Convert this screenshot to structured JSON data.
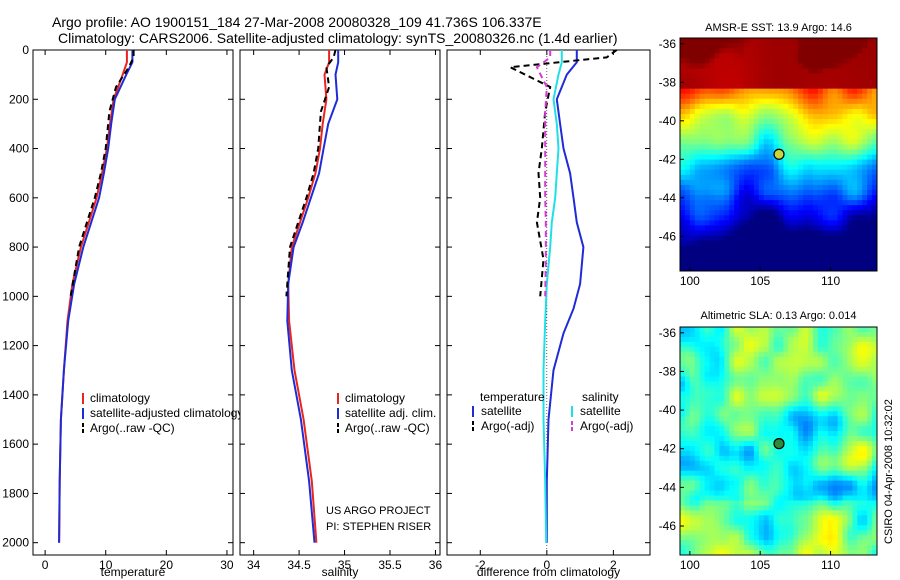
{
  "header": {
    "line1": "Argo profile: AO 1900151_184 27-Mar-2008 20080328_109 41.736S 106.337E",
    "line2": "Climatology: CARS2006. Satellite-adjusted climatology: synTS_20080326.nc (1.4d earlier)"
  },
  "footer": {
    "project": "US ARGO PROJECT",
    "pi": "PI: STEPHEN RISER",
    "credit": "CSIRO 04-Apr-2008 10:32:02"
  },
  "colors": {
    "climatology": "#e8251f",
    "satellite": "#1f2bd6",
    "argo": "#000000",
    "cyan": "#1fe0e8",
    "magenta": "#d63bd6"
  },
  "chart_data": [
    {
      "type": "line",
      "id": "temperature",
      "xlabel": "temperature",
      "ylabel": "",
      "xlim": [
        -2,
        31
      ],
      "ylim": [
        2050,
        0
      ],
      "xticks": [
        0,
        10,
        20,
        30
      ],
      "yticks": [
        0,
        200,
        400,
        600,
        800,
        1000,
        1200,
        1400,
        1600,
        1800,
        2000
      ],
      "legend": [
        "climatology",
        "satellite-adjusted climatology",
        "Argo(..raw -QC)"
      ],
      "series": [
        {
          "name": "climatology",
          "color": "#e8251f",
          "dash": "solid",
          "x": [
            13.5,
            13.5,
            12.8,
            11.3,
            10.7,
            10.2,
            9.4,
            8.5,
            7.2,
            5.9,
            4.5,
            3.7,
            3.1,
            2.6,
            2.4,
            2.3
          ],
          "y": [
            0,
            50,
            100,
            200,
            300,
            400,
            500,
            600,
            700,
            800,
            950,
            1100,
            1300,
            1500,
            1750,
            2000
          ]
        },
        {
          "name": "satellite-adjusted climatology",
          "color": "#1f2bd6",
          "dash": "solid",
          "x": [
            14.4,
            14.4,
            13.4,
            11.5,
            10.9,
            10.4,
            9.7,
            8.9,
            7.6,
            6.3,
            4.8,
            3.8,
            3.1,
            2.6,
            2.4,
            2.3
          ],
          "y": [
            0,
            50,
            100,
            200,
            300,
            400,
            500,
            600,
            700,
            800,
            950,
            1100,
            1300,
            1500,
            1750,
            2000
          ]
        },
        {
          "name": "Argo(..raw -QC)",
          "color": "#000000",
          "dash": "dashed",
          "x": [
            14.6,
            14.6,
            13.8,
            11.7,
            10.6,
            10.0,
            9.2,
            8.2,
            6.9,
            5.6,
            4.2
          ],
          "y": [
            0,
            30,
            70,
            150,
            250,
            400,
            500,
            600,
            700,
            800,
            1000
          ]
        }
      ]
    },
    {
      "type": "line",
      "id": "salinity",
      "xlabel": "salinity",
      "ylabel": "",
      "xlim": [
        33.85,
        36.05
      ],
      "ylim": [
        2050,
        0
      ],
      "xticks": [
        34,
        34.5,
        35,
        35.5,
        36
      ],
      "yticks": [
        0,
        200,
        400,
        600,
        800,
        1000,
        1200,
        1400,
        1600,
        1800,
        2000
      ],
      "legend": [
        "climatology",
        "satellite adj. clim.",
        "Argo(..raw -QC)"
      ],
      "series": [
        {
          "name": "climatology",
          "color": "#e8251f",
          "dash": "solid",
          "x": [
            34.83,
            34.83,
            34.78,
            34.8,
            34.76,
            34.73,
            34.68,
            34.6,
            34.51,
            34.42,
            34.38,
            34.39,
            34.45,
            34.55,
            34.64,
            34.69
          ],
          "y": [
            0,
            50,
            100,
            200,
            300,
            400,
            500,
            600,
            700,
            800,
            950,
            1100,
            1300,
            1500,
            1750,
            2000
          ]
        },
        {
          "name": "satellite adj. clim.",
          "color": "#1f2bd6",
          "dash": "solid",
          "x": [
            34.93,
            34.93,
            34.9,
            34.92,
            34.82,
            34.77,
            34.72,
            34.63,
            34.54,
            34.44,
            34.38,
            34.37,
            34.42,
            34.52,
            34.61,
            34.67
          ],
          "y": [
            0,
            50,
            100,
            200,
            300,
            400,
            500,
            600,
            700,
            800,
            950,
            1100,
            1300,
            1500,
            1750,
            2000
          ]
        },
        {
          "name": "Argo(..raw -QC)",
          "color": "#000000",
          "dash": "dashed",
          "x": [
            34.9,
            34.88,
            34.8,
            34.83,
            34.74,
            34.71,
            34.66,
            34.58,
            34.49,
            34.4,
            34.36
          ],
          "y": [
            0,
            30,
            70,
            150,
            250,
            400,
            500,
            600,
            700,
            800,
            1000
          ]
        }
      ]
    },
    {
      "type": "line",
      "id": "difference",
      "xlabel": "difference from climatology",
      "ylabel": "",
      "xlim": [
        -3,
        3.1
      ],
      "ylim": [
        2050,
        0
      ],
      "xticks": [
        -2,
        0,
        2
      ],
      "yticks": [
        0,
        200,
        400,
        600,
        800,
        1000,
        1200,
        1400,
        1600,
        1800,
        2000
      ],
      "legend_title": [
        "temperature",
        "salinity"
      ],
      "legend": [
        "satellite",
        "Argo(-adj)",
        "satellite",
        "Argo(-adj)"
      ],
      "series": [
        {
          "name": "temperature satellite",
          "color": "#1f2bd6",
          "dash": "solid",
          "x": [
            0.9,
            0.9,
            0.6,
            0.3,
            0.4,
            0.5,
            0.7,
            0.8,
            0.9,
            1.1,
            1.0,
            0.8,
            0.5,
            0.2,
            0.05,
            0.0,
            0.0
          ],
          "y": [
            0,
            50,
            100,
            200,
            300,
            400,
            500,
            600,
            700,
            800,
            950,
            1050,
            1150,
            1300,
            1500,
            1750,
            2000
          ]
        },
        {
          "name": "temperature Argo(-adj)",
          "color": "#000000",
          "dash": "dashed",
          "x": [
            2.1,
            1.8,
            -1.1,
            0.1,
            -0.05,
            -0.15,
            -0.25,
            -0.2,
            -0.3,
            -0.1,
            -0.2
          ],
          "y": [
            0,
            30,
            70,
            150,
            250,
            400,
            500,
            600,
            700,
            850,
            1000
          ]
        },
        {
          "name": "salinity satellite",
          "color": "#1fe0e8",
          "dash": "solid",
          "x": [
            0.45,
            0.45,
            0.35,
            0.2,
            0.3,
            0.35,
            0.3,
            0.25,
            0.15,
            0.1,
            0.0,
            -0.05,
            -0.1,
            -0.1,
            -0.05,
            -0.02
          ],
          "y": [
            0,
            50,
            100,
            200,
            300,
            400,
            500,
            600,
            700,
            800,
            950,
            1100,
            1300,
            1500,
            1750,
            2000
          ]
        },
        {
          "name": "salinity Argo(-adj)",
          "color": "#d63bd6",
          "dash": "dashed",
          "x": [
            0.1,
            0.1,
            -0.3,
            0.0,
            -0.05,
            -0.05,
            -0.05,
            -0.05,
            -0.03,
            -0.03,
            -0.05
          ],
          "y": [
            0,
            30,
            70,
            150,
            250,
            400,
            500,
            600,
            700,
            850,
            1000
          ]
        }
      ]
    },
    {
      "type": "heatmap",
      "id": "sst",
      "title": "AMSR-E SST: 13.9 Argo: 14.6",
      "xlim": [
        99.3,
        113.3
      ],
      "ylim": [
        -47.8,
        -35.7
      ],
      "xticks": [
        100,
        105,
        110
      ],
      "yticks": [
        -36,
        -38,
        -40,
        -42,
        -44,
        -46
      ],
      "marker": {
        "lon": 106.337,
        "lat": -41.736
      }
    },
    {
      "type": "heatmap",
      "id": "sla",
      "title": "Altimetric SLA: 0.13 Argo: 0.014",
      "xlim": [
        99.3,
        113.3
      ],
      "ylim": [
        -47.5,
        -35.7
      ],
      "xticks": [
        100,
        105,
        110
      ],
      "yticks": [
        -36,
        -38,
        -40,
        -42,
        -44,
        -46
      ],
      "marker": {
        "lon": 106.337,
        "lat": -41.736
      }
    }
  ]
}
